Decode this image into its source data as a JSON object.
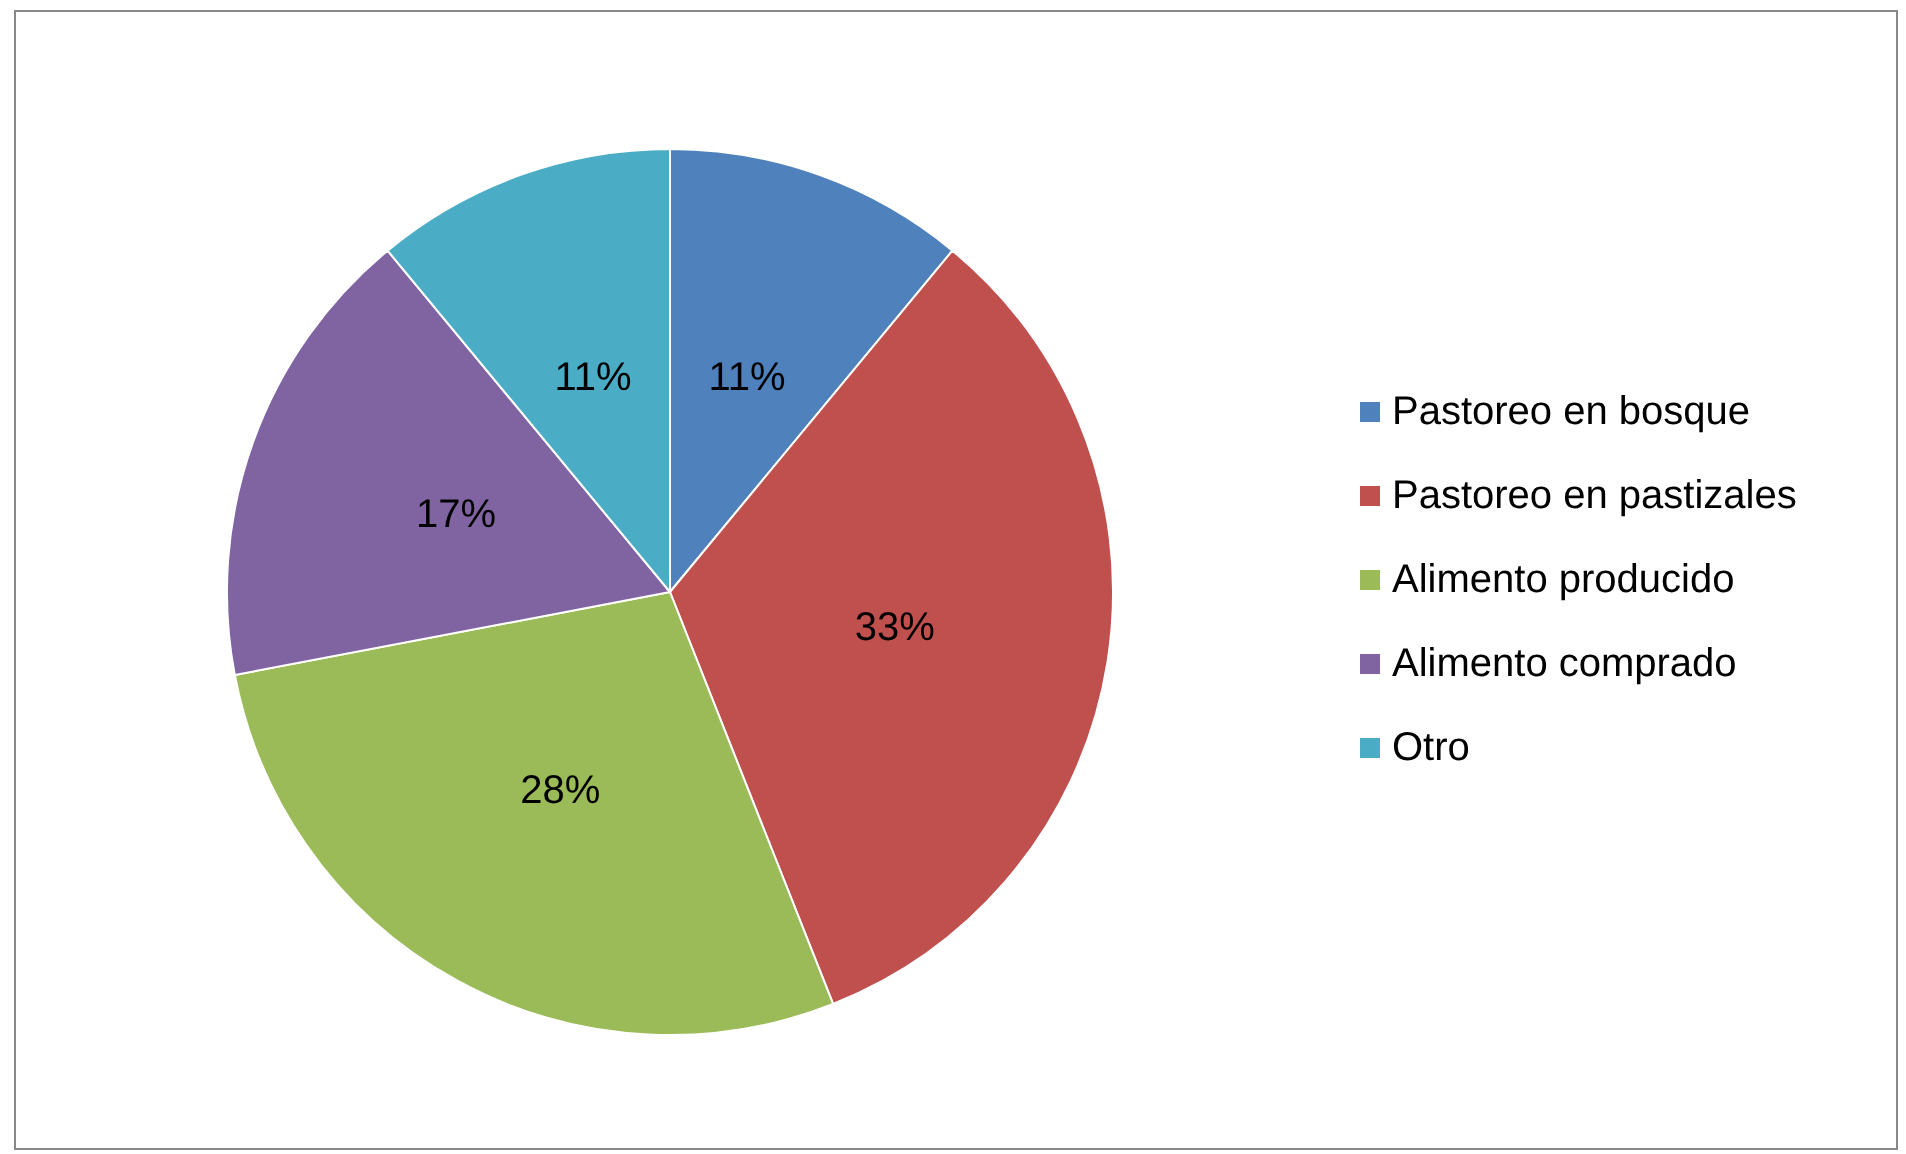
{
  "chart_data": {
    "type": "pie",
    "categories": [
      "Pastoreo en bosque",
      "Pastoreo en pastizales",
      "Alimento producido",
      "Alimento comprado",
      "Otro"
    ],
    "values": [
      11,
      33,
      28,
      17,
      11
    ],
    "value_labels": [
      "11%",
      "33%",
      "28%",
      "17%",
      "11%"
    ],
    "colors": [
      "#4f81bd",
      "#c0504d",
      "#9bbb59",
      "#8064a2",
      "#4bacc6"
    ],
    "legend": "right"
  }
}
